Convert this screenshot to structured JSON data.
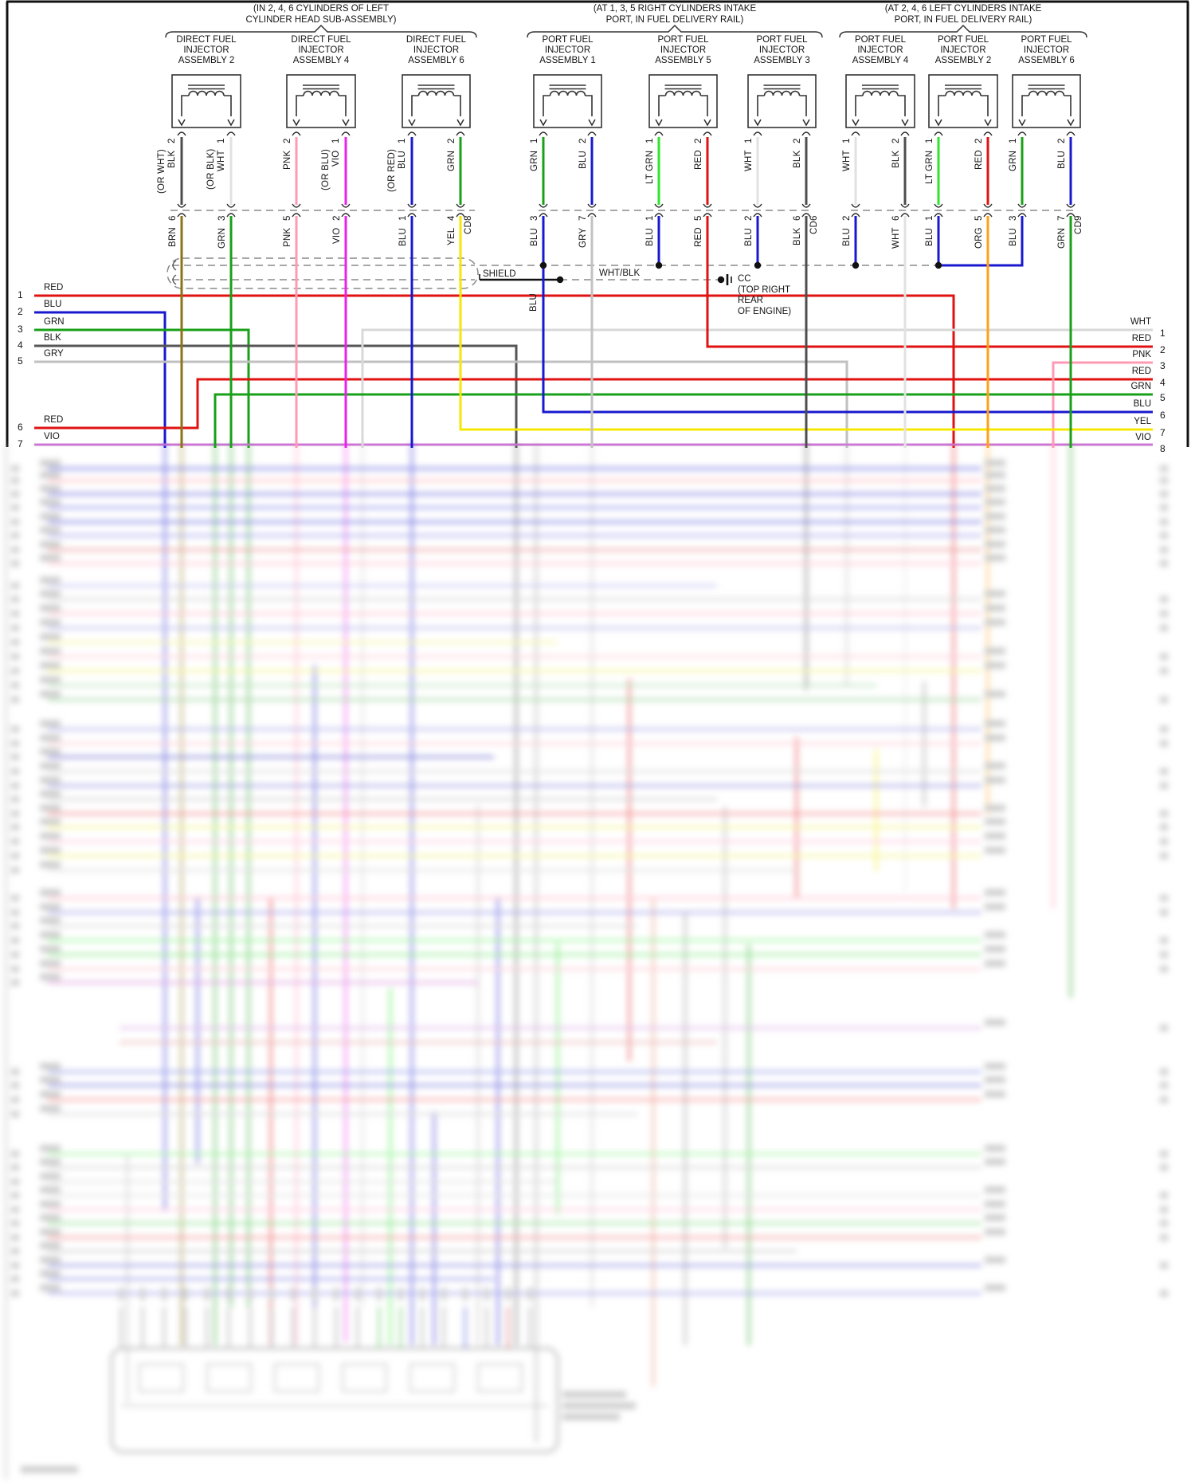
{
  "groups": [
    {
      "note_lines": [
        "(IN 2, 4, 6 CYLINDERS OF LEFT",
        "CYLINDER HEAD SUB-ASSEMBLY)"
      ],
      "connector": "CD8",
      "injectors": [
        {
          "title_lines": [
            "DIRECT FUEL",
            "INJECTOR",
            "ASSEMBLY 2"
          ],
          "pins": [
            {
              "num": "2",
              "label": "BLK",
              "alt": "(OR WHT)",
              "color": "#4d4d4d"
            },
            {
              "num": "1",
              "label": "WHT",
              "alt": "(OR BLK)",
              "color": "#e2e2e2"
            }
          ],
          "tails": [
            {
              "num": "6",
              "label": "BRN",
              "color": "#8a7414"
            },
            {
              "num": "3",
              "label": "GRN",
              "color": "#18a018"
            }
          ]
        },
        {
          "title_lines": [
            "DIRECT FUEL",
            "INJECTOR",
            "ASSEMBLY 4"
          ],
          "pins": [
            {
              "num": "2",
              "label": "PNK",
              "color": "#ff9ab5"
            },
            {
              "num": "1",
              "label": "VIO",
              "alt": "(OR BLU)",
              "color": "#e822e8"
            }
          ],
          "tails": [
            {
              "num": "5",
              "label": "PNK",
              "color": "#ff9ab5"
            },
            {
              "num": "2",
              "label": "VIO",
              "color": "#e822e8"
            }
          ]
        },
        {
          "title_lines": [
            "DIRECT FUEL",
            "INJECTOR",
            "ASSEMBLY 6"
          ],
          "pins": [
            {
              "num": "1",
              "label": "BLU",
              "alt": "(OR RED)",
              "color": "#1818cf"
            },
            {
              "num": "2",
              "label": "GRN",
              "color": "#18a018"
            }
          ],
          "tails": [
            {
              "num": "1",
              "label": "BLU",
              "color": "#1818cf"
            },
            {
              "num": "4",
              "label": "YEL",
              "color": "#f5e800"
            }
          ]
        }
      ]
    },
    {
      "note_lines": [
        "(AT 1, 3, 5 RIGHT CYLINDERS INTAKE",
        "PORT, IN FUEL DELIVERY RAIL)"
      ],
      "connector": "CD6",
      "injectors": [
        {
          "title_lines": [
            "PORT FUEL",
            "INJECTOR",
            "ASSEMBLY 1"
          ],
          "pins": [
            {
              "num": "1",
              "label": "GRN",
              "color": "#18a018"
            },
            {
              "num": "2",
              "label": "BLU",
              "color": "#1818cf"
            }
          ],
          "tails": [
            {
              "num": "3",
              "label": "BLU",
              "color": "#1818cf"
            },
            {
              "num": "7",
              "label": "GRY",
              "color": "#c2c2c2"
            }
          ]
        },
        {
          "title_lines": [
            "PORT FUEL",
            "INJECTOR",
            "ASSEMBLY 5"
          ],
          "pins": [
            {
              "num": "1",
              "label": "LT GRN",
              "color": "#2ee52e"
            },
            {
              "num": "2",
              "label": "RED",
              "color": "#e01212"
            }
          ],
          "tails": [
            {
              "num": "1",
              "label": "BLU",
              "color": "#1818cf"
            },
            {
              "num": "5",
              "label": "RED",
              "color": "#e01212"
            }
          ]
        },
        {
          "title_lines": [
            "PORT FUEL",
            "INJECTOR",
            "ASSEMBLY 3"
          ],
          "pins": [
            {
              "num": "1",
              "label": "WHT",
              "color": "#e2e2e2"
            },
            {
              "num": "2",
              "label": "BLK",
              "color": "#4d4d4d"
            }
          ],
          "tails": [
            {
              "num": "2",
              "label": "BLU",
              "color": "#1818cf"
            },
            {
              "num": "6",
              "label": "BLK",
              "color": "#4d4d4d"
            }
          ]
        }
      ]
    },
    {
      "note_lines": [
        "(AT 2, 4, 6 LEFT CYLINDERS INTAKE",
        "PORT, IN FUEL DELIVERY RAIL)"
      ],
      "connector": "CD9",
      "injectors": [
        {
          "title_lines": [
            "PORT FUEL",
            "INJECTOR",
            "ASSEMBLY 4"
          ],
          "pins": [
            {
              "num": "1",
              "label": "WHT",
              "color": "#e2e2e2"
            },
            {
              "num": "2",
              "label": "BLK",
              "color": "#4d4d4d"
            }
          ],
          "tails": [
            {
              "num": "2",
              "label": "BLU",
              "color": "#1818cf"
            },
            {
              "num": "6",
              "label": "WHT",
              "color": "#e2e2e2"
            }
          ]
        },
        {
          "title_lines": [
            "PORT FUEL",
            "INJECTOR",
            "ASSEMBLY 2"
          ],
          "pins": [
            {
              "num": "1",
              "label": "LT GRN",
              "color": "#2ee52e"
            },
            {
              "num": "2",
              "label": "RED",
              "color": "#e01212"
            }
          ],
          "tails": [
            {
              "num": "1",
              "label": "BLU",
              "color": "#1818cf"
            },
            {
              "num": "5",
              "label": "ORG",
              "color": "#ffa018"
            }
          ]
        },
        {
          "title_lines": [
            "PORT FUEL",
            "INJECTOR",
            "ASSEMBLY 6"
          ],
          "pins": [
            {
              "num": "1",
              "label": "GRN",
              "color": "#18a018"
            },
            {
              "num": "2",
              "label": "BLU",
              "color": "#1818cf"
            }
          ],
          "tails": [
            {
              "num": "3",
              "label": "BLU",
              "color": "#1818cf"
            },
            {
              "num": "7",
              "label": "GRN",
              "color": "#18a018"
            }
          ]
        }
      ]
    }
  ],
  "shield": {
    "label": "SHIELD",
    "wire_label": "WHT/BLK",
    "drain_label": "BLU",
    "ground_lines": [
      "CC",
      "(TOP RIGHT",
      "REAR",
      "OF ENGINE)"
    ]
  },
  "left_rows": [
    {
      "num": "1",
      "label": "RED",
      "color": "#e01212"
    },
    {
      "num": "2",
      "label": "BLU",
      "color": "#1818cf"
    },
    {
      "num": "3",
      "label": "GRN",
      "color": "#18a018"
    },
    {
      "num": "4",
      "label": "BLK",
      "color": "#555555"
    },
    {
      "num": "5",
      "label": "GRY",
      "color": "#c0c0c0"
    },
    {
      "num": "6",
      "label": "RED",
      "color": "#e01212"
    },
    {
      "num": "7",
      "label": "VIO",
      "color": "#cc77d4"
    }
  ],
  "right_rows": [
    {
      "num": "1",
      "label": "WHT",
      "color": "#d8d8d8"
    },
    {
      "num": "2",
      "label": "RED",
      "color": "#e01212"
    },
    {
      "num": "3",
      "label": "PNK",
      "color": "#ff9ab5"
    },
    {
      "num": "4",
      "label": "RED",
      "color": "#e01212"
    },
    {
      "num": "5",
      "label": "GRN",
      "color": "#18a018"
    },
    {
      "num": "6",
      "label": "BLU",
      "color": "#1818cf"
    },
    {
      "num": "7",
      "label": "YEL",
      "color": "#f5e800"
    },
    {
      "num": "8",
      "label": "VIO",
      "color": "#d678d6"
    }
  ]
}
